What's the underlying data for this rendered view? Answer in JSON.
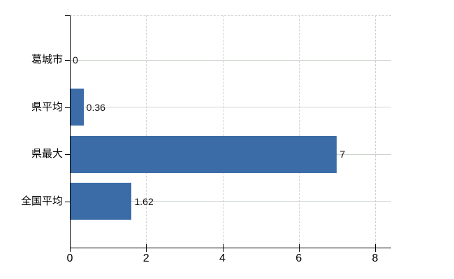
{
  "chart_data": {
    "type": "bar",
    "orientation": "horizontal",
    "title": "",
    "xlabel": "",
    "ylabel": "",
    "categories": [
      "葛城市",
      "県平均",
      "県最大",
      "全国平均"
    ],
    "values": [
      0,
      0.36,
      7,
      1.62
    ],
    "value_labels": [
      "0",
      "0.36",
      "7",
      "1.62"
    ],
    "x_ticks": [
      0,
      2,
      4,
      6,
      8
    ],
    "x_tick_labels": [
      "0",
      "2",
      "4",
      "6",
      "8"
    ],
    "xlim": [
      0,
      8.42
    ],
    "grid": {
      "horizontal_style": "solid",
      "vertical_style": "dashed",
      "horizontal_at": "category-centers",
      "vertical_at": "x-ticks"
    },
    "legend": null,
    "colors": {
      "bar": "#3b6ca8",
      "axis": "#000000",
      "grid_horizontal": "#ccd5cc",
      "grid_vertical": "#d5cfd5",
      "text": "#000000",
      "background": "#ffffff"
    }
  }
}
